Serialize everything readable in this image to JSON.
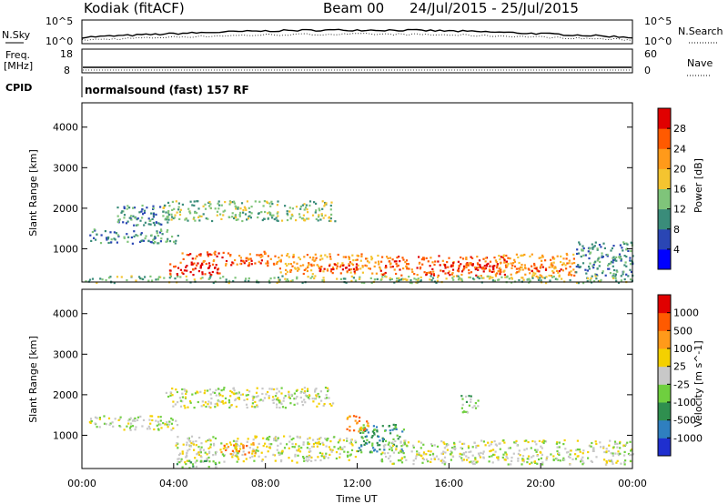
{
  "header": {
    "station": "Kodiak (fitACF)",
    "beam": "Beam 00",
    "date_range": "24/Jul/2015 - 25/Jul/2015"
  },
  "top_panels": {
    "nsky_label": "N.Sky",
    "nsearch_label": "N.Search",
    "noise_ticks_left": [
      "10^5",
      "10^0"
    ],
    "noise_ticks_right": [
      "10^5",
      "10^0"
    ],
    "freq_label_line1": "Freq.",
    "freq_label_line2": "[MHz]",
    "freq_ticks": [
      "18",
      "8"
    ],
    "nave_label": "Nave",
    "nave_ticks": [
      "60",
      "0"
    ],
    "cpid_label": "CPID",
    "cpid_text": "normalsound (fast) 157 RF"
  },
  "chart_data": [
    {
      "type": "heatmap",
      "name": "power",
      "ylabel": "Slant Range [km]",
      "ylim": [
        180,
        4600
      ],
      "yticks": [
        "4000",
        "3000",
        "2000",
        "1000"
      ],
      "xlim": [
        0,
        24
      ],
      "colorbar_label": "Power [dB]",
      "colorbar_ticks": [
        "28",
        "24",
        "20",
        "16",
        "12",
        "8",
        "4"
      ],
      "colors": [
        "#0000ff",
        "#2a46b4",
        "#3a8c7a",
        "#7fc47a",
        "#f4c430",
        "#ff9a1a",
        "#ff5a00",
        "#e00000"
      ],
      "features": [
        {
          "x": [
            0.3,
            4.2
          ],
          "y": [
            1150,
            1500
          ],
          "level": 2
        },
        {
          "x": [
            1.5,
            4.0
          ],
          "y": [
            1600,
            2100
          ],
          "level": 2
        },
        {
          "x": [
            3.5,
            11.0
          ],
          "y": [
            1700,
            2200
          ],
          "level": 3
        },
        {
          "x": [
            4.2,
            8.5
          ],
          "y": [
            600,
            950
          ],
          "level": 6
        },
        {
          "x": [
            3.8,
            6.0
          ],
          "y": [
            350,
            700
          ],
          "level": 7
        },
        {
          "x": [
            8.5,
            13.0
          ],
          "y": [
            400,
            900
          ],
          "level": 5
        },
        {
          "x": [
            10.0,
            12.0
          ],
          "y": [
            450,
            650
          ],
          "level": 7
        },
        {
          "x": [
            13.0,
            18.5
          ],
          "y": [
            350,
            850
          ],
          "level": 6
        },
        {
          "x": [
            15.5,
            18.0
          ],
          "y": [
            450,
            650
          ],
          "level": 7
        },
        {
          "x": [
            18.0,
            21.5
          ],
          "y": [
            300,
            900
          ],
          "level": 5
        },
        {
          "x": [
            19.5,
            21.0
          ],
          "y": [
            450,
            650
          ],
          "level": 6
        },
        {
          "x": [
            21.5,
            24.0
          ],
          "y": [
            300,
            1200
          ],
          "level": 2
        },
        {
          "x": [
            0.0,
            24.0
          ],
          "y": [
            180,
            350
          ],
          "level": 3
        }
      ]
    },
    {
      "type": "heatmap",
      "name": "velocity",
      "ylabel": "Slant Range [km]",
      "ylim": [
        180,
        4600
      ],
      "yticks": [
        "4000",
        "3000",
        "2000",
        "1000"
      ],
      "xlim": [
        0,
        24
      ],
      "xlabel": "Time UT",
      "xticks": [
        "00:00",
        "04:00",
        "08:00",
        "12:00",
        "16:00",
        "20:00",
        "00:00"
      ],
      "colorbar_label": "Velocity [m s^-1]",
      "colorbar_ticks": [
        "1000",
        "500",
        "100",
        "25",
        "-25",
        "-100",
        "-500",
        "-1000"
      ],
      "colors": [
        "#1f2fcf",
        "#2f7fbf",
        "#2f8f4f",
        "#6fcf3f",
        "#c8c8c8",
        "#f4d000",
        "#ff9a1a",
        "#ff5a00",
        "#e00000"
      ],
      "features": [
        {
          "x": [
            0.3,
            4.2
          ],
          "y": [
            1150,
            1500
          ],
          "level": 4
        },
        {
          "x": [
            3.5,
            11.0
          ],
          "y": [
            1700,
            2200
          ],
          "level": 4
        },
        {
          "x": [
            4.0,
            12.0
          ],
          "y": [
            350,
            1000
          ],
          "level": 4
        },
        {
          "x": [
            6.0,
            7.6
          ],
          "y": [
            550,
            850
          ],
          "level": 6
        },
        {
          "x": [
            12.0,
            14.0
          ],
          "y": [
            600,
            1300
          ],
          "level": 2
        },
        {
          "x": [
            11.5,
            12.5
          ],
          "y": [
            1100,
            1500
          ],
          "level": 6
        },
        {
          "x": [
            13.0,
            24.0
          ],
          "y": [
            300,
            900
          ],
          "level": 4
        },
        {
          "x": [
            16.5,
            17.3
          ],
          "y": [
            1550,
            2000
          ],
          "level": 3
        },
        {
          "x": [
            4.0,
            6.0
          ],
          "y": [
            200,
            400
          ],
          "level": 3
        }
      ]
    }
  ]
}
